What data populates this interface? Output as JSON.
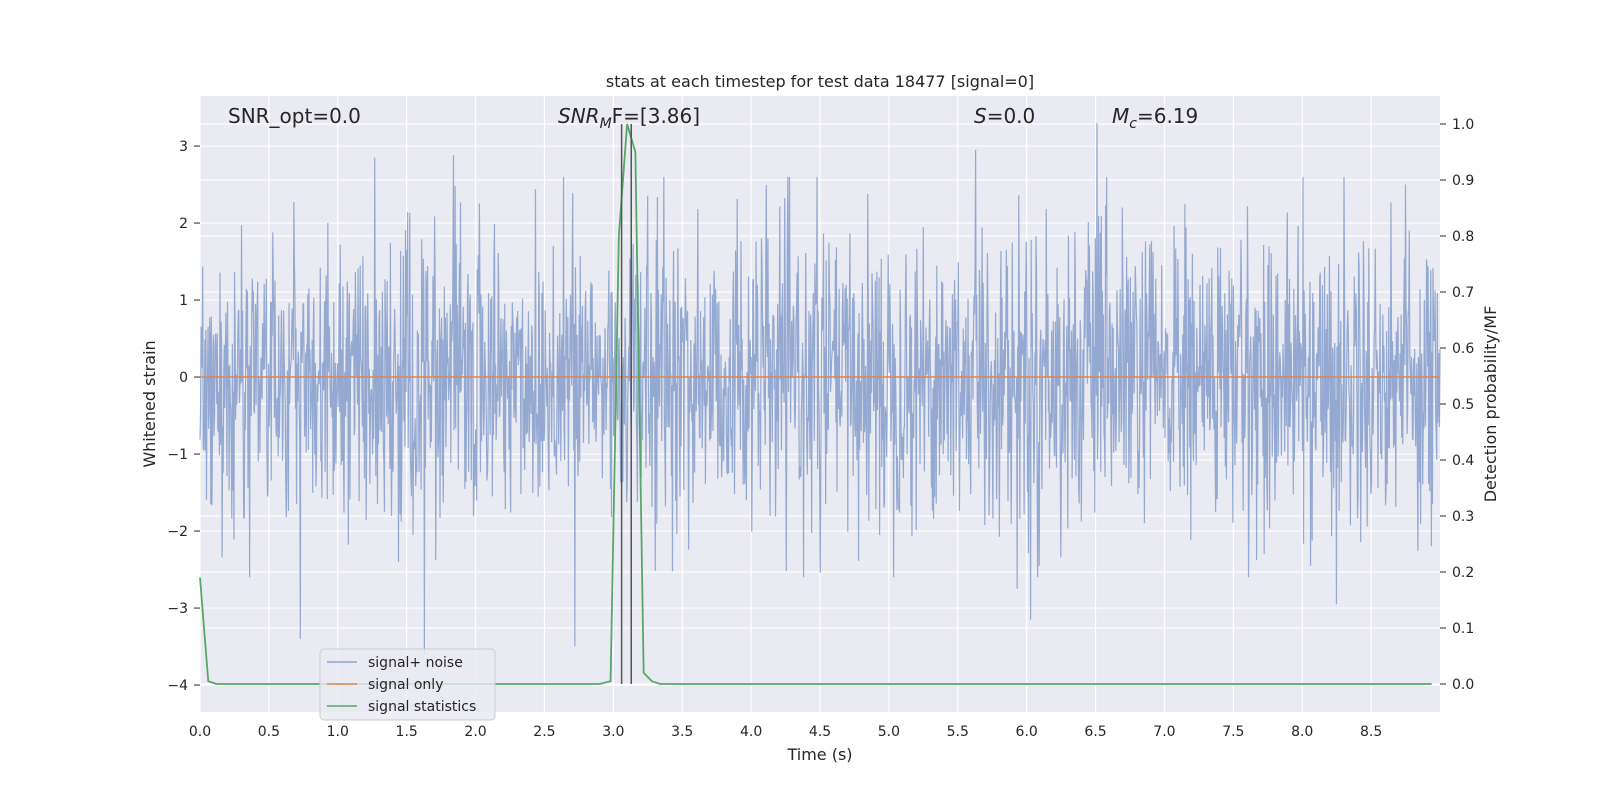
{
  "chart_data": {
    "type": "line",
    "title": "stats at each timestep for test data 18477 [signal=0]",
    "xlabel": "Time (s)",
    "ylabel_left": "Whitened strain",
    "ylabel_right": "Detection probability/MF",
    "xlim": [
      0.0,
      9.0
    ],
    "ylim_left": [
      -4.35,
      3.65
    ],
    "ylim_right": [
      -0.05,
      1.05
    ],
    "x_ticks": [
      "0.0",
      "0.5",
      "1.0",
      "1.5",
      "2.0",
      "2.5",
      "3.0",
      "3.5",
      "4.0",
      "4.5",
      "5.0",
      "5.5",
      "6.0",
      "6.5",
      "7.0",
      "7.5",
      "8.0",
      "8.5"
    ],
    "y_left_ticks": [
      "−4",
      "−3",
      "−2",
      "−1",
      "0",
      "1",
      "2",
      "3"
    ],
    "y_right_ticks": [
      "0.0",
      "0.1",
      "0.2",
      "0.3",
      "0.4",
      "0.5",
      "0.6",
      "0.7",
      "0.8",
      "0.9",
      "1.0"
    ],
    "grid": true,
    "legend_position": "lower-left",
    "annotations": {
      "snr_opt": "SNR_opt=0.0",
      "snr_mf_base": "SNR",
      "snr_mf_sub": "M",
      "snr_mf_rest": "F=[3.86]",
      "s_var": "S",
      "s_rest": "=0.0",
      "mc_base": "M",
      "mc_sub": "c",
      "mc_rest": "=6.19"
    },
    "series": [
      {
        "name": "signal+ noise",
        "color": "#8fa5cf",
        "axis": "left",
        "description_values": "whitened noise, approx. Gaussian, range -3.6 to 3.3",
        "extremes": [
          [
            0.73,
            -3.4
          ],
          [
            1.63,
            -3.6
          ],
          [
            2.72,
            -3.5
          ],
          [
            6.03,
            -3.15
          ],
          [
            5.93,
            -2.75
          ],
          [
            8.25,
            -2.95
          ],
          [
            0.36,
            -2.6
          ],
          [
            6.51,
            3.3
          ],
          [
            5.63,
            2.95
          ],
          [
            1.84,
            2.88
          ],
          [
            1.27,
            2.85
          ],
          [
            2.64,
            2.6
          ],
          [
            8.75,
            2.5
          ]
        ]
      },
      {
        "name": "signal only",
        "color": "#dd8452",
        "axis": "left",
        "x": [
          0.0,
          9.0
        ],
        "values": [
          0.0,
          0.0
        ]
      },
      {
        "name": "signal statistics",
        "color": "#55a868",
        "axis": "right",
        "x": [
          0.0,
          0.06,
          0.12,
          0.18,
          2.9,
          2.98,
          3.04,
          3.1,
          3.16,
          3.22,
          3.28,
          3.34,
          8.94
        ],
        "values": [
          0.19,
          0.005,
          0.0,
          0.0,
          0.0,
          0.005,
          0.8,
          1.0,
          0.95,
          0.02,
          0.005,
          0.0,
          0.0
        ]
      }
    ],
    "vlines": [
      3.06,
      3.13
    ]
  }
}
